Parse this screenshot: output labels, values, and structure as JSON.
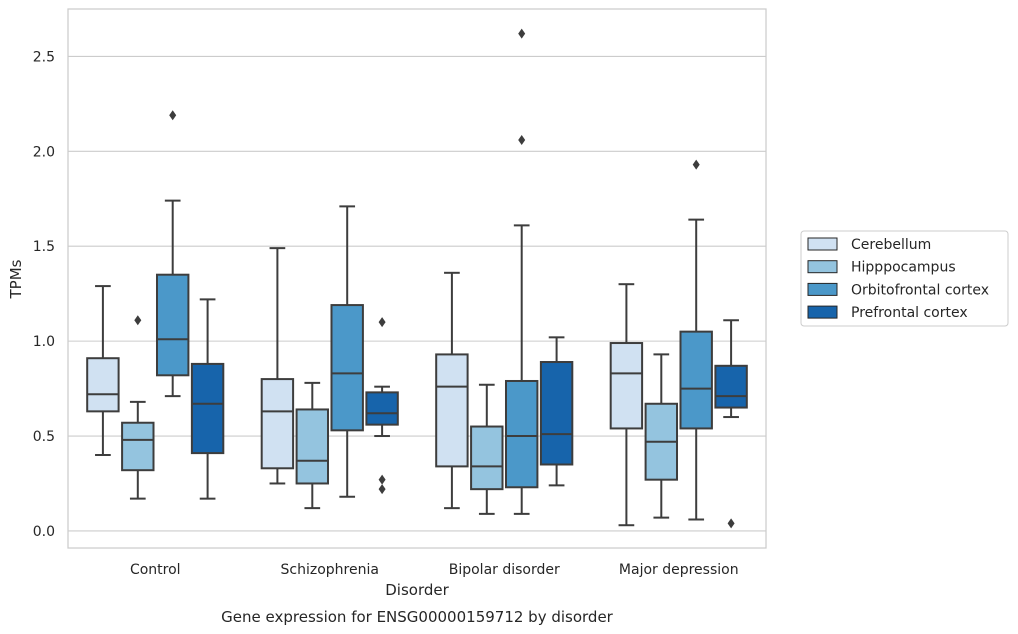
{
  "chart_data": {
    "type": "box",
    "title": "Gene expression for ENSG00000159712 by disorder",
    "xlabel": "Disorder",
    "ylabel": "TPMs",
    "ylim": [
      -0.09,
      2.75
    ],
    "yticks": [
      0.0,
      0.5,
      1.0,
      1.5,
      2.0,
      2.5
    ],
    "ytick_labels": [
      "0.0",
      "0.5",
      "1.0",
      "1.5",
      "2.0",
      "2.5"
    ],
    "categories": [
      "Control",
      "Schizophrenia",
      "Bipolar disorder",
      "Major depression"
    ],
    "grid": "horizontal",
    "legend_position": "right",
    "series": [
      {
        "name": "Cerebellum",
        "color": "#d0e1f2",
        "boxes": [
          {
            "whislo": 0.4,
            "q1": 0.63,
            "med": 0.72,
            "q3": 0.91,
            "whishi": 1.29,
            "fliers": []
          },
          {
            "whislo": 0.25,
            "q1": 0.33,
            "med": 0.63,
            "q3": 0.8,
            "whishi": 1.49,
            "fliers": []
          },
          {
            "whislo": 0.12,
            "q1": 0.34,
            "med": 0.76,
            "q3": 0.93,
            "whishi": 1.36,
            "fliers": []
          },
          {
            "whislo": 0.03,
            "q1": 0.54,
            "med": 0.83,
            "q3": 0.99,
            "whishi": 1.3,
            "fliers": []
          }
        ]
      },
      {
        "name": "Hipppocampus",
        "color": "#94c4df",
        "boxes": [
          {
            "whislo": 0.17,
            "q1": 0.32,
            "med": 0.48,
            "q3": 0.57,
            "whishi": 0.68,
            "fliers": [
              1.11
            ]
          },
          {
            "whislo": 0.12,
            "q1": 0.25,
            "med": 0.37,
            "q3": 0.64,
            "whishi": 0.78,
            "fliers": []
          },
          {
            "whislo": 0.09,
            "q1": 0.22,
            "med": 0.34,
            "q3": 0.55,
            "whishi": 0.77,
            "fliers": []
          },
          {
            "whislo": 0.07,
            "q1": 0.27,
            "med": 0.47,
            "q3": 0.67,
            "whishi": 0.93,
            "fliers": []
          }
        ]
      },
      {
        "name": "Orbitofrontal cortex",
        "color": "#4b98c9",
        "boxes": [
          {
            "whislo": 0.71,
            "q1": 0.82,
            "med": 1.01,
            "q3": 1.35,
            "whishi": 1.74,
            "fliers": [
              2.19
            ]
          },
          {
            "whislo": 0.18,
            "q1": 0.53,
            "med": 0.83,
            "q3": 1.19,
            "whishi": 1.71,
            "fliers": []
          },
          {
            "whislo": 0.09,
            "q1": 0.23,
            "med": 0.5,
            "q3": 0.79,
            "whishi": 1.61,
            "fliers": [
              2.06,
              2.62
            ]
          },
          {
            "whislo": 0.06,
            "q1": 0.54,
            "med": 0.75,
            "q3": 1.05,
            "whishi": 1.64,
            "fliers": [
              1.93
            ]
          }
        ]
      },
      {
        "name": "Prefrontal cortex",
        "color": "#1764ab",
        "boxes": [
          {
            "whislo": 0.17,
            "q1": 0.41,
            "med": 0.67,
            "q3": 0.88,
            "whishi": 1.22,
            "fliers": []
          },
          {
            "whislo": 0.5,
            "q1": 0.56,
            "med": 0.62,
            "q3": 0.73,
            "whishi": 0.76,
            "fliers": [
              1.1,
              0.27,
              0.22
            ]
          },
          {
            "whislo": 0.24,
            "q1": 0.35,
            "med": 0.51,
            "q3": 0.89,
            "whishi": 1.02,
            "fliers": []
          },
          {
            "whislo": 0.6,
            "q1": 0.65,
            "med": 0.71,
            "q3": 0.87,
            "whishi": 1.11,
            "fliers": [
              0.04
            ]
          }
        ]
      }
    ]
  }
}
